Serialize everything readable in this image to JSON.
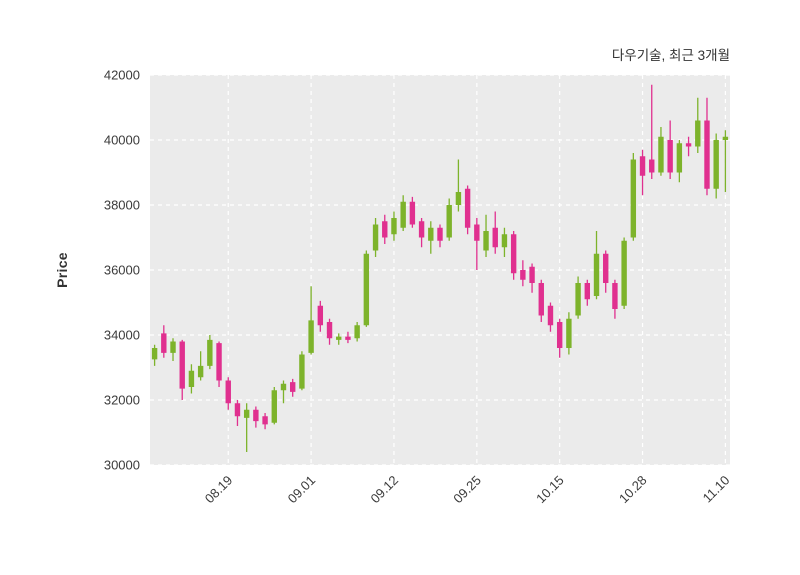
{
  "chart_data": {
    "type": "candlestick",
    "title": "다우기술, 최근 3개월",
    "ylabel": "Price",
    "ylim": [
      30000,
      42000
    ],
    "yticks": [
      30000,
      32000,
      34000,
      36000,
      38000,
      40000,
      42000
    ],
    "xtick_labels": [
      "08.19",
      "09.01",
      "09.12",
      "09.25",
      "10.15",
      "10.28",
      "11.10"
    ],
    "xtick_indices": [
      8,
      17,
      26,
      35,
      44,
      53,
      62
    ],
    "grid": "dashed",
    "legend": "none",
    "colors": {
      "up": "#7db32b",
      "down": "#e0308f",
      "plot_bg": "#ebebeb",
      "grid": "#ffffff",
      "text": "#3b3b3b"
    },
    "candles_format": [
      "open",
      "high",
      "low",
      "close"
    ],
    "candles": [
      [
        33250,
        33700,
        33050,
        33600
      ],
      [
        34050,
        34300,
        33300,
        33450
      ],
      [
        33450,
        33900,
        33200,
        33800
      ],
      [
        33800,
        33850,
        32000,
        32350
      ],
      [
        32400,
        33100,
        32200,
        32900
      ],
      [
        32700,
        33500,
        32600,
        33050
      ],
      [
        33050,
        34000,
        32950,
        33850
      ],
      [
        33750,
        33800,
        32400,
        32600
      ],
      [
        32600,
        32700,
        31700,
        31900
      ],
      [
        31900,
        32000,
        31200,
        31500
      ],
      [
        31450,
        31900,
        30400,
        31700
      ],
      [
        31700,
        31800,
        31150,
        31350
      ],
      [
        31500,
        31600,
        31100,
        31250
      ],
      [
        31300,
        32400,
        31250,
        32300
      ],
      [
        32300,
        32600,
        31900,
        32500
      ],
      [
        32550,
        32650,
        32100,
        32250
      ],
      [
        32350,
        33500,
        32300,
        33400
      ],
      [
        33450,
        35500,
        33400,
        34450
      ],
      [
        34900,
        35050,
        34100,
        34300
      ],
      [
        34400,
        34500,
        33700,
        33900
      ],
      [
        33850,
        34050,
        33700,
        33950
      ],
      [
        33950,
        34100,
        33750,
        33850
      ],
      [
        33900,
        34400,
        33800,
        34300
      ],
      [
        34300,
        36600,
        34250,
        36500
      ],
      [
        36600,
        37600,
        36400,
        37400
      ],
      [
        37500,
        37700,
        36800,
        37000
      ],
      [
        37100,
        37800,
        36900,
        37600
      ],
      [
        37300,
        38300,
        37200,
        38100
      ],
      [
        38100,
        38250,
        37300,
        37400
      ],
      [
        37500,
        37600,
        36700,
        37000
      ],
      [
        36900,
        37500,
        36500,
        37300
      ],
      [
        37300,
        37400,
        36700,
        36900
      ],
      [
        37000,
        38200,
        36900,
        38000
      ],
      [
        38000,
        39400,
        37800,
        38400
      ],
      [
        38500,
        38600,
        37100,
        37300
      ],
      [
        37400,
        37600,
        36000,
        36900
      ],
      [
        36600,
        37700,
        36400,
        37200
      ],
      [
        37300,
        37800,
        36500,
        36700
      ],
      [
        36700,
        37300,
        36400,
        37100
      ],
      [
        37100,
        37200,
        35700,
        35900
      ],
      [
        36000,
        36300,
        35500,
        35700
      ],
      [
        36100,
        36200,
        35300,
        35600
      ],
      [
        35600,
        35700,
        34400,
        34600
      ],
      [
        34900,
        35000,
        34100,
        34300
      ],
      [
        34400,
        34500,
        33300,
        33600
      ],
      [
        33600,
        34700,
        33400,
        34500
      ],
      [
        34600,
        35800,
        34500,
        35600
      ],
      [
        35600,
        35700,
        34900,
        35100
      ],
      [
        35200,
        37200,
        35100,
        36500
      ],
      [
        36500,
        36600,
        35300,
        35600
      ],
      [
        35600,
        35700,
        34500,
        34800
      ],
      [
        34900,
        37000,
        34800,
        36900
      ],
      [
        37000,
        39600,
        36900,
        39400
      ],
      [
        39500,
        39700,
        38300,
        38900
      ],
      [
        39400,
        41700,
        38800,
        39000
      ],
      [
        39000,
        40400,
        38900,
        40100
      ],
      [
        40000,
        40600,
        38800,
        39000
      ],
      [
        39000,
        40000,
        38700,
        39900
      ],
      [
        39900,
        40100,
        39500,
        39800
      ],
      [
        39800,
        41300,
        39600,
        40600
      ],
      [
        40600,
        41300,
        38300,
        38500
      ],
      [
        38500,
        40200,
        38200,
        40000
      ],
      [
        40000,
        40300,
        38400,
        40100
      ]
    ]
  }
}
